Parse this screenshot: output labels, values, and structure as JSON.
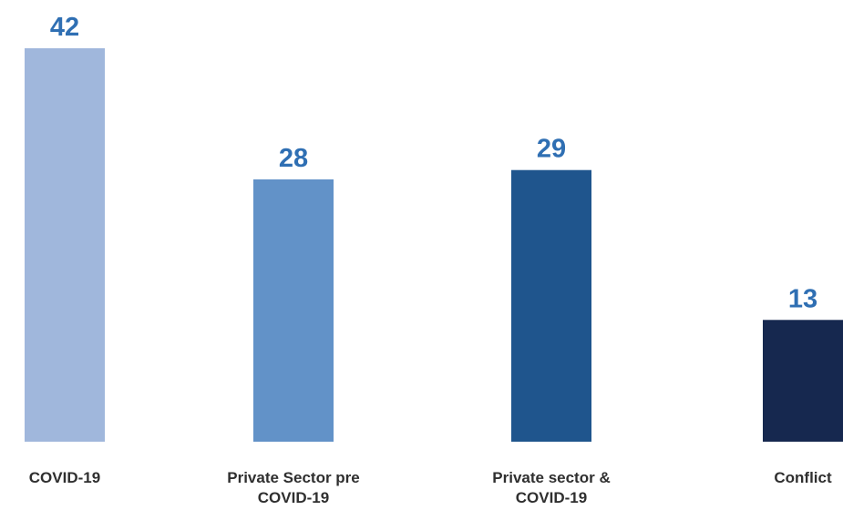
{
  "chart_data": {
    "type": "bar",
    "categories": [
      [
        "COVID-19"
      ],
      [
        "Private Sector pre",
        "COVID-19"
      ],
      [
        "Private sector &",
        "COVID-19"
      ],
      [
        "Conflict"
      ]
    ],
    "values": [
      42,
      28,
      29,
      13
    ],
    "bar_colors": [
      "#a0b7dc",
      "#6292c8",
      "#1f558d",
      "#16284f"
    ],
    "value_label_color": "#2f6fb3",
    "ylim": [
      0,
      42
    ],
    "grid": false,
    "legend": "none"
  }
}
